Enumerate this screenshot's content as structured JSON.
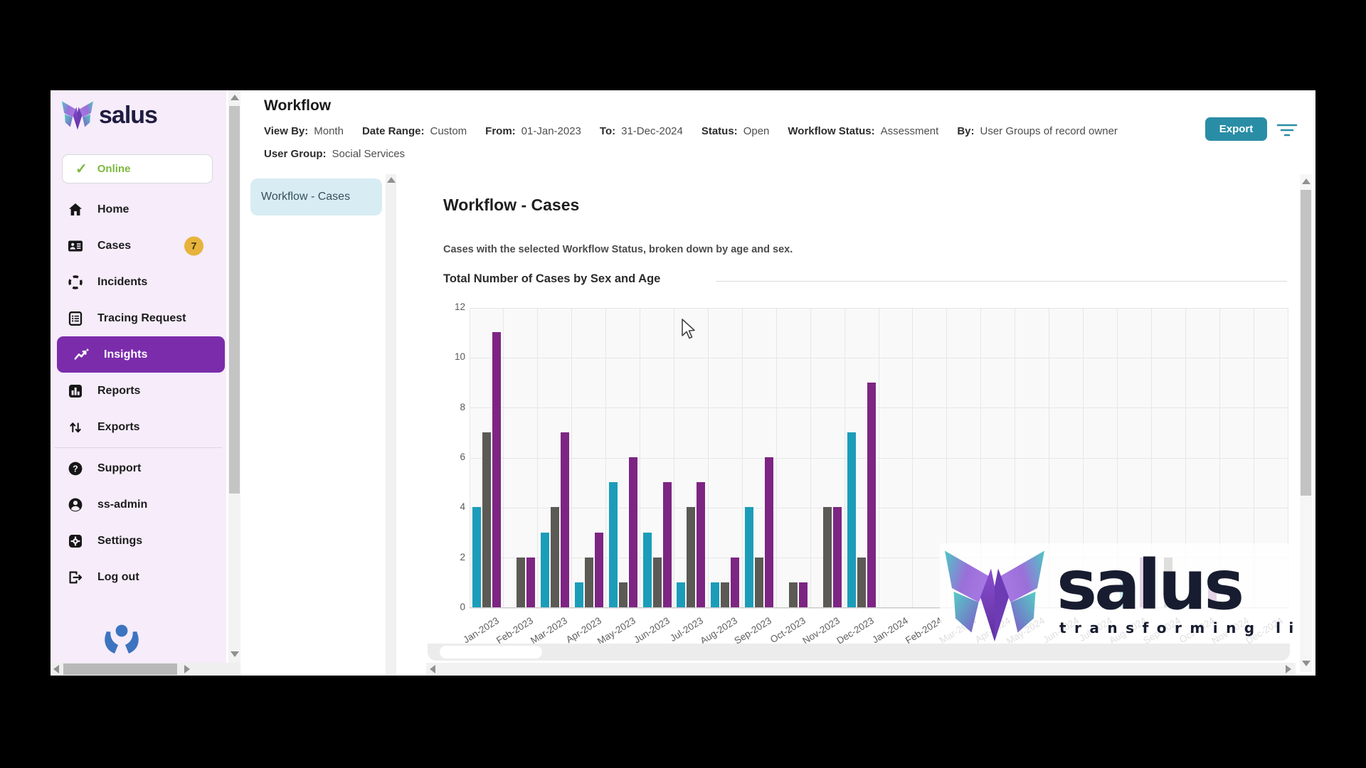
{
  "window": {
    "app_name": "salus"
  },
  "sidebar": {
    "logo_text": "salus",
    "status": {
      "label": "Online"
    },
    "items": [
      {
        "name": "home",
        "label": "Home",
        "icon": "home"
      },
      {
        "name": "cases",
        "label": "Cases",
        "icon": "cases",
        "badge": "7"
      },
      {
        "name": "incidents",
        "label": "Incidents",
        "icon": "incidents"
      },
      {
        "name": "tracing-request",
        "label": "Tracing Request",
        "icon": "tracing"
      },
      {
        "name": "insights",
        "label": "Insights",
        "icon": "insights",
        "active": true
      },
      {
        "name": "reports",
        "label": "Reports",
        "icon": "reports"
      },
      {
        "name": "exports",
        "label": "Exports",
        "icon": "exports"
      },
      {
        "divider": true
      },
      {
        "name": "support",
        "label": "Support",
        "icon": "support"
      },
      {
        "name": "ss-admin",
        "label": "ss-admin",
        "icon": "user"
      },
      {
        "name": "settings",
        "label": "Settings",
        "icon": "settings"
      },
      {
        "name": "log-out",
        "label": "Log out",
        "icon": "logout"
      }
    ]
  },
  "header": {
    "title": "Workflow",
    "filters_row1": [
      {
        "label": "View By:",
        "value": "Month"
      },
      {
        "label": "Date Range:",
        "value": "Custom"
      },
      {
        "label": "From:",
        "value": "01-Jan-2023"
      },
      {
        "label": "To:",
        "value": "31-Dec-2024"
      },
      {
        "label": "Status:",
        "value": "Open"
      },
      {
        "label": "Workflow Status:",
        "value": "Assessment"
      },
      {
        "label": "By:",
        "value": "User Groups of record owner"
      }
    ],
    "filters_row2": [
      {
        "label": "User Group:",
        "value": "Social Services"
      }
    ],
    "export_label": "Export"
  },
  "tabs": [
    {
      "label": "Workflow - Cases",
      "active": true
    }
  ],
  "main": {
    "title": "Workflow - Cases",
    "description": "Cases with the selected Workflow Status, broken down by age and sex.",
    "section_title": "Total Number of Cases by Sex and Age"
  },
  "chart_data": {
    "type": "bar",
    "title": "Total Number of Cases by Sex and Age",
    "xlabel": "",
    "ylabel": "",
    "ylim": [
      0,
      12
    ],
    "yticks": [
      0,
      2,
      4,
      6,
      8,
      10,
      12
    ],
    "grid": true,
    "legend_position": "none",
    "categories": [
      "Jan-2023",
      "Feb-2023",
      "Mar-2023",
      "Apr-2023",
      "May-2023",
      "Jun-2023",
      "Jul-2023",
      "Aug-2023",
      "Sep-2023",
      "Oct-2023",
      "Nov-2023",
      "Dec-2023",
      "Jan-2024",
      "Feb-2024",
      "Mar-2024",
      "Apr-2024",
      "May-2024",
      "Jun-2024",
      "Jul-2024",
      "Aug-2024",
      "Sep-2024",
      "Oct-2024",
      "Nov-2024",
      "Dec-2024"
    ],
    "series": [
      {
        "name": "teal-series",
        "color": "#1b9dba",
        "values": [
          4,
          0,
          3,
          1,
          5,
          3,
          1,
          1,
          4,
          0,
          0,
          7,
          0,
          0,
          0,
          0,
          0,
          0,
          0,
          1,
          0,
          0,
          0,
          0
        ]
      },
      {
        "name": "gray-series",
        "color": "#5c5a55",
        "values": [
          7,
          2,
          4,
          2,
          1,
          2,
          4,
          1,
          2,
          1,
          4,
          2,
          0,
          0,
          0,
          0,
          0,
          0,
          0,
          0,
          2,
          0,
          0,
          0
        ]
      },
      {
        "name": "purple-series",
        "color": "#7d2583",
        "values": [
          11,
          2,
          7,
          3,
          6,
          5,
          5,
          2,
          6,
          1,
          4,
          9,
          0,
          0,
          0,
          0,
          0,
          0,
          0,
          2,
          0,
          1,
          0,
          0
        ]
      }
    ]
  },
  "watermark": {
    "brand": "salus",
    "tagline": "transforming lives"
  },
  "colors": {
    "sidebar_bg": "#f6ecfa",
    "active_item": "#7b2cab",
    "online_green": "#7cb83e",
    "export_teal": "#2a8da6",
    "badge_amber": "#e7b33c",
    "tab_blue": "#d8ecf3"
  }
}
